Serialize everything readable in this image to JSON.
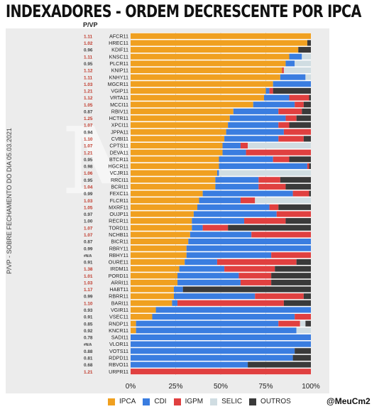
{
  "title": "INDEXADORES - ORDEM DECRESCENTE POR IPCA",
  "pvp_header": "P/VP",
  "handle": "@MeuCm2",
  "chart_data": {
    "type": "bar",
    "orientation": "horizontal",
    "stacked": true,
    "ylabel": "P/VP - SOBRE FECHAMENTO DO DIA 05.03.2021",
    "xlim": [
      0,
      100
    ],
    "xticks": [
      "0%",
      "25%",
      "50%",
      "75%",
      "100%"
    ],
    "legend_position": "bottom",
    "grid": true,
    "series_names": [
      "IPCA",
      "CDI",
      "IGPM",
      "SELIC",
      "OUTROS"
    ],
    "colors": {
      "IPCA": "#f0a020",
      "CDI": "#3a7de0",
      "IGPM": "#e04040",
      "SELIC": "#d0dde2",
      "OUTROS": "#3a3a3a"
    },
    "rows": [
      {
        "ticker": "AFCR11",
        "pvp": "1.11",
        "values": [
          100,
          0,
          0,
          0,
          0
        ]
      },
      {
        "ticker": "HREC11",
        "pvp": "1.02",
        "values": [
          98,
          0,
          0,
          0,
          2
        ]
      },
      {
        "ticker": "KDIF11",
        "pvp": "0.96",
        "values": [
          93,
          0,
          0,
          0,
          7
        ]
      },
      {
        "ticker": "KNSC11",
        "pvp": "1.11",
        "values": [
          88,
          7,
          0,
          5,
          0
        ]
      },
      {
        "ticker": "PLCR11",
        "pvp": "0.95",
        "values": [
          86,
          5,
          0,
          9,
          0
        ]
      },
      {
        "ticker": "KNIP11",
        "pvp": "1.12",
        "values": [
          84,
          0,
          1,
          15,
          0
        ]
      },
      {
        "ticker": "KNHY11",
        "pvp": "1.11",
        "values": [
          83,
          14,
          0,
          3,
          0
        ]
      },
      {
        "ticker": "MGCR11",
        "pvp": "1.03",
        "values": [
          79,
          21,
          0,
          0,
          0
        ]
      },
      {
        "ticker": "VGIP11",
        "pvp": "1.21",
        "values": [
          75,
          2,
          2,
          0,
          21
        ]
      },
      {
        "ticker": "VRTA11",
        "pvp": "1.12",
        "values": [
          74,
          14,
          11,
          0,
          1
        ]
      },
      {
        "ticker": "MCCI11",
        "pvp": "1.05",
        "values": [
          68,
          23,
          5,
          0,
          4
        ]
      },
      {
        "ticker": "RBIV11",
        "pvp": "0.87",
        "values": [
          57,
          25,
          13,
          0,
          5
        ]
      },
      {
        "ticker": "HCTR11",
        "pvp": "1.25",
        "values": [
          55,
          31,
          6,
          0,
          8
        ]
      },
      {
        "ticker": "XPCI11",
        "pvp": "1.07",
        "values": [
          54,
          28,
          6,
          0,
          12
        ]
      },
      {
        "ticker": "JPPA11",
        "pvp": "0.94",
        "values": [
          53,
          32,
          15,
          0,
          0
        ]
      },
      {
        "ticker": "CVBI11",
        "pvp": "1.10",
        "values": [
          52,
          30,
          14,
          0,
          4
        ]
      },
      {
        "ticker": "CPTS11",
        "pvp": "1.07",
        "values": [
          51,
          10,
          4,
          35,
          0
        ]
      },
      {
        "ticker": "DEVA11",
        "pvp": "1.21",
        "values": [
          51,
          13,
          36,
          0,
          0
        ]
      },
      {
        "ticker": "BTCR11",
        "pvp": "0.95",
        "values": [
          49,
          30,
          9,
          0,
          12
        ]
      },
      {
        "ticker": "HGCR11",
        "pvp": "0.98",
        "values": [
          49,
          49,
          1,
          0,
          1
        ]
      },
      {
        "ticker": "VCJR11",
        "pvp": "1.06",
        "values": [
          48,
          1,
          0,
          51,
          0
        ]
      },
      {
        "ticker": "RRCI11",
        "pvp": "0.95",
        "values": [
          47,
          24,
          12,
          0,
          17
        ]
      },
      {
        "ticker": "BCRI11",
        "pvp": "1.04",
        "values": [
          47,
          24,
          15,
          0,
          14
        ]
      },
      {
        "ticker": "FEXC11",
        "pvp": "0.99",
        "values": [
          40,
          50,
          9,
          0,
          1
        ]
      },
      {
        "ticker": "FLCR11",
        "pvp": "1.03",
        "values": [
          38,
          23,
          8,
          31,
          0
        ]
      },
      {
        "ticker": "MXRF11",
        "pvp": "1.05",
        "values": [
          37,
          40,
          5,
          0,
          18
        ]
      },
      {
        "ticker": "OUJP11",
        "pvp": "0.97",
        "values": [
          35,
          46,
          19,
          0,
          0
        ]
      },
      {
        "ticker": "RECR11",
        "pvp": "1.00",
        "values": [
          34,
          29,
          23,
          0,
          14
        ]
      },
      {
        "ticker": "TORD11",
        "pvp": "1.07",
        "values": [
          34,
          6,
          14,
          0,
          46
        ]
      },
      {
        "ticker": "NCHB11",
        "pvp": "1.07",
        "values": [
          33,
          34,
          33,
          0,
          0
        ]
      },
      {
        "ticker": "BICR11",
        "pvp": "0.87",
        "values": [
          32,
          68,
          0,
          0,
          0
        ]
      },
      {
        "ticker": "RBRY11",
        "pvp": "0.99",
        "values": [
          31,
          69,
          0,
          0,
          0
        ]
      },
      {
        "ticker": "RBHY11",
        "pvp": "#N/A",
        "values": [
          31,
          47,
          22,
          0,
          0
        ]
      },
      {
        "ticker": "OURE11",
        "pvp": "0.91",
        "values": [
          30,
          18,
          44,
          0,
          8
        ]
      },
      {
        "ticker": "IRDM11",
        "pvp": "1.38",
        "values": [
          27,
          25,
          28,
          0,
          20
        ]
      },
      {
        "ticker": "PORD11",
        "pvp": "1.01",
        "values": [
          26,
          34,
          18,
          0,
          22
        ]
      },
      {
        "ticker": "ARRI11",
        "pvp": "1.03",
        "values": [
          26,
          35,
          17,
          0,
          22
        ]
      },
      {
        "ticker": "HABT11",
        "pvp": "1.17",
        "values": [
          24,
          5,
          0,
          0,
          71
        ]
      },
      {
        "ticker": "RBRR11",
        "pvp": "0.99",
        "values": [
          24,
          45,
          27,
          0,
          4
        ]
      },
      {
        "ticker": "BARI11",
        "pvp": "1.10",
        "values": [
          23,
          3,
          59,
          0,
          15
        ]
      },
      {
        "ticker": "VGIR11",
        "pvp": "0.93",
        "values": [
          14,
          86,
          0,
          0,
          0
        ]
      },
      {
        "ticker": "VSEC11",
        "pvp": "0.91",
        "values": [
          12,
          79,
          9,
          0,
          0
        ]
      },
      {
        "ticker": "RNDP11",
        "pvp": "0.85",
        "values": [
          3,
          79,
          12,
          3,
          3
        ]
      },
      {
        "ticker": "KNCR11",
        "pvp": "0.92",
        "values": [
          3,
          89,
          0,
          8,
          0
        ]
      },
      {
        "ticker": "SADI11",
        "pvp": "0.78",
        "values": [
          0,
          100,
          0,
          0,
          0
        ]
      },
      {
        "ticker": "VLOR11",
        "pvp": "#N/A",
        "values": [
          0,
          100,
          0,
          0,
          0
        ]
      },
      {
        "ticker": "VOTS11",
        "pvp": "0.88",
        "values": [
          0,
          91,
          0,
          0,
          9
        ]
      },
      {
        "ticker": "RDPD11",
        "pvp": "0.81",
        "values": [
          0,
          90,
          0,
          0,
          10
        ]
      },
      {
        "ticker": "RBVO11",
        "pvp": "0.68",
        "values": [
          0,
          65,
          0,
          0,
          35
        ]
      },
      {
        "ticker": "URPR11",
        "pvp": "1.21",
        "values": [
          0,
          0,
          100,
          0,
          0
        ]
      }
    ]
  }
}
